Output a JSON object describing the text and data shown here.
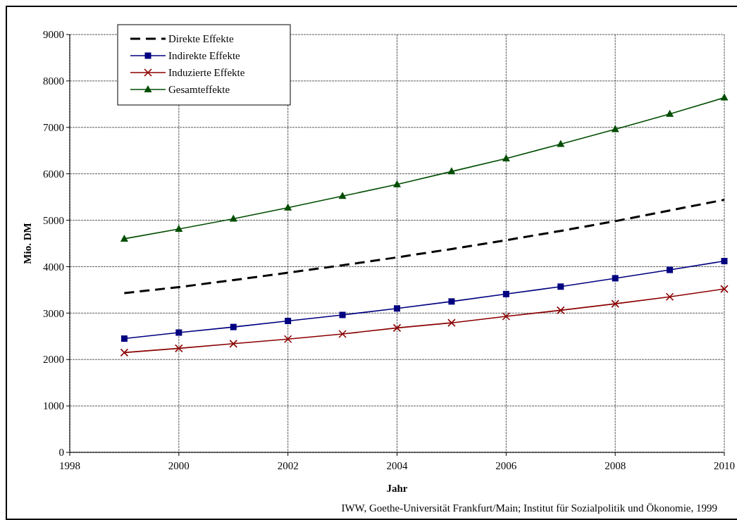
{
  "chart_data": {
    "type": "line",
    "xlabel": "Jahr",
    "ylabel": "Mio. DM",
    "x": [
      1999,
      2000,
      2001,
      2002,
      2003,
      2004,
      2005,
      2006,
      2007,
      2008,
      2009,
      2010
    ],
    "series": [
      {
        "name": "Direkte Effekte",
        "color": "#000000",
        "marker": "none",
        "line_style": "dashed",
        "values": [
          3430,
          3560,
          3710,
          3870,
          4030,
          4200,
          4380,
          4570,
          4770,
          4980,
          5210,
          5440
        ]
      },
      {
        "name": "Indirekte Effekte",
        "color": "#000080",
        "marker": "square",
        "values": [
          2450,
          2580,
          2700,
          2830,
          2960,
          3100,
          3250,
          3410,
          3570,
          3750,
          3930,
          4120
        ]
      },
      {
        "name": "Induzierte Effekte",
        "color": "#8b0000",
        "marker": "cross",
        "values": [
          2150,
          2240,
          2340,
          2440,
          2550,
          2680,
          2790,
          2930,
          3060,
          3200,
          3350,
          3520
        ]
      },
      {
        "name": "Gesamteffekte",
        "color": "#004d00",
        "marker": "triangle",
        "values": [
          4600,
          4810,
          5030,
          5270,
          5520,
          5770,
          6050,
          6330,
          6640,
          6960,
          7290,
          7640
        ]
      }
    ],
    "xlim": [
      1998,
      2010
    ],
    "xticks": [
      1998,
      2000,
      2002,
      2004,
      2006,
      2008,
      2010
    ],
    "ylim": [
      0,
      9000
    ],
    "yticks": [
      0,
      1000,
      2000,
      3000,
      4000,
      5000,
      6000,
      7000,
      8000,
      9000
    ],
    "grid": true,
    "legend": "top left",
    "annotations": [
      "IWW, Goethe-Universität Frankfurt/Main; Institut für Sozialpolitik und Ökonomie, 1999"
    ]
  }
}
